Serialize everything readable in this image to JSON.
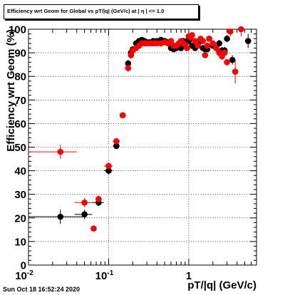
{
  "chart_data": {
    "type": "scatter",
    "title": "Efficiency wrt Geom for Global vs pT/|q| (GeV/c) at | η | <= 1.0",
    "xlabel": "pT/|q| (GeV/c)",
    "ylabel": "Efficiency wrt Geom (%)",
    "xscale": "log",
    "xlim": [
      0.01,
      7
    ],
    "ylim": [
      0,
      100
    ],
    "xticks": [
      0.01,
      0.1,
      1
    ],
    "xtick_labels": [
      "10^-2",
      "10^-1",
      "1"
    ],
    "yticks": [
      0,
      10,
      20,
      30,
      40,
      50,
      60,
      70,
      80,
      90,
      100
    ],
    "grid": true,
    "series": [
      {
        "color": "#000000",
        "x": [
          0.025,
          0.05,
          0.075,
          0.1,
          0.125,
          0.15,
          0.175,
          0.19,
          0.2,
          0.22,
          0.24,
          0.26,
          0.28,
          0.3,
          0.33,
          0.36,
          0.4,
          0.45,
          0.5,
          0.55,
          0.6,
          0.65,
          0.7,
          0.75,
          0.8,
          0.85,
          0.9,
          0.95,
          1.0,
          1.05,
          1.1,
          1.2,
          1.3,
          1.4,
          1.5,
          1.6,
          1.7,
          1.8,
          2.0,
          2.2,
          2.4,
          2.6,
          2.8,
          3.0,
          3.5,
          5.5
        ],
        "y": [
          20.5,
          21.5,
          26.5,
          40,
          50.5,
          63.5,
          85.5,
          90,
          91.5,
          94,
          95,
          95.5,
          95,
          94.5,
          94.5,
          95,
          95,
          95.5,
          95,
          94.5,
          92,
          91.5,
          92,
          93,
          92,
          95,
          93,
          95,
          95,
          96,
          93,
          92,
          93,
          95,
          92,
          91.5,
          91.5,
          96,
          93,
          92,
          94,
          91,
          91,
          96,
          87,
          95
        ],
        "xerr": [
          0.025,
          0.0125,
          0.0125,
          0.0125,
          0.0125,
          0.0125,
          0.0,
          0,
          0,
          0,
          0,
          0,
          0,
          0,
          0,
          0,
          0,
          0,
          0,
          0,
          0,
          0,
          0,
          0,
          0,
          0,
          0,
          0,
          0,
          0,
          0,
          0,
          0,
          0,
          0,
          0,
          0,
          0,
          0,
          0,
          0,
          0,
          0,
          0,
          0,
          0.3
        ],
        "yerr": [
          3,
          2,
          1.5,
          1.5,
          1,
          1,
          1.5,
          1.5,
          1,
          0.8,
          0.7,
          0.6,
          0.6,
          0.6,
          0.6,
          0.6,
          0.6,
          0.6,
          0.6,
          0.8,
          0.8,
          0.8,
          0.8,
          0.8,
          0.8,
          0.8,
          0.8,
          0.8,
          0.8,
          0.8,
          1,
          1,
          1,
          1,
          1,
          1,
          1,
          1,
          1,
          1.5,
          1.5,
          1.5,
          1.5,
          1.5,
          2,
          3
        ]
      },
      {
        "color": "#ff0000",
        "x": [
          0.025,
          0.05,
          0.065,
          0.075,
          0.1,
          0.125,
          0.15,
          0.175,
          0.19,
          0.2,
          0.22,
          0.24,
          0.26,
          0.28,
          0.3,
          0.33,
          0.36,
          0.4,
          0.45,
          0.5,
          0.55,
          0.6,
          0.65,
          0.7,
          0.75,
          0.8,
          0.85,
          0.9,
          0.95,
          1.0,
          1.05,
          1.1,
          1.2,
          1.3,
          1.4,
          1.5,
          1.6,
          1.7,
          1.8,
          2.0,
          2.2,
          2.4,
          2.6,
          2.8,
          3.0,
          3.3,
          3.8,
          4.5
        ],
        "y": [
          48,
          26.5,
          15.5,
          28,
          42,
          52.5,
          63.5,
          83.5,
          89,
          91,
          92,
          93,
          94,
          94,
          94,
          94,
          94,
          94,
          94,
          94.5,
          94,
          95,
          93,
          93,
          94,
          95,
          94,
          93.5,
          92,
          97,
          96.5,
          97.5,
          95,
          93,
          96,
          95,
          89,
          93,
          96,
          94,
          92,
          90,
          88.5,
          90,
          86,
          99,
          82,
          100
        ],
        "xerr": [
          0.015,
          0.0125,
          0,
          0,
          0.0125,
          0.0125,
          0.0125,
          0,
          0,
          0,
          0,
          0,
          0,
          0,
          0,
          0,
          0,
          0,
          0,
          0,
          0,
          0,
          0,
          0,
          0,
          0,
          0,
          0,
          0,
          0,
          0,
          0,
          0,
          0,
          0,
          0,
          0,
          0,
          0,
          0,
          0,
          0,
          0,
          0,
          0,
          0,
          0,
          0
        ],
        "yerr": [
          3,
          2,
          1,
          1.5,
          1.5,
          1,
          1,
          1.5,
          1.5,
          1,
          0.8,
          0.7,
          0.6,
          0.6,
          0.6,
          0.6,
          0.6,
          0.6,
          0.6,
          0.6,
          0.8,
          0.8,
          0.8,
          0.8,
          0.8,
          0.8,
          0.8,
          0.8,
          0.8,
          0.8,
          0.8,
          1,
          1,
          1,
          1,
          1,
          1,
          1,
          1,
          1,
          1.5,
          1.5,
          1.5,
          1.5,
          1.5,
          2,
          5,
          3
        ]
      }
    ]
  },
  "timestamp": "Sun Oct 18 16:52:24 2020"
}
